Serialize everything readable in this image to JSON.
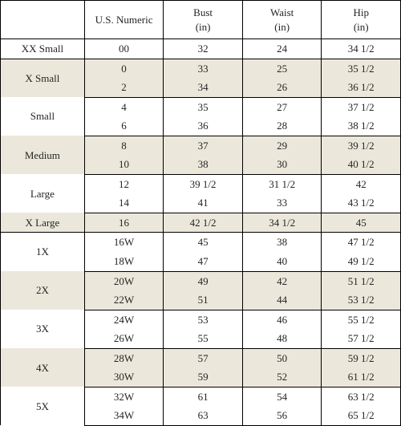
{
  "table": {
    "type": "table",
    "background_color": "#ffffff",
    "alt_row_color": "#ebe8db",
    "border_color": "#000000",
    "text_color": "#252525",
    "font_family": "serif",
    "font_size_pt": 10,
    "columns": [
      {
        "label_line1": "",
        "label_line2": ""
      },
      {
        "label_line1": "U.S. Numeric",
        "label_line2": ""
      },
      {
        "label_line1": "Bust",
        "label_line2": "(in)"
      },
      {
        "label_line1": "Waist",
        "label_line2": "(in)"
      },
      {
        "label_line1": "Hip",
        "label_line2": "(in)"
      }
    ],
    "groups": [
      {
        "size": "XX Small",
        "band": "a",
        "rows": [
          {
            "numeric": "00",
            "bust": "32",
            "waist": "24",
            "hip": "34 1/2"
          }
        ]
      },
      {
        "size": "X Small",
        "band": "b",
        "rows": [
          {
            "numeric": "0",
            "bust": "33",
            "waist": "25",
            "hip": "35 1/2"
          },
          {
            "numeric": "2",
            "bust": "34",
            "waist": "26",
            "hip": "36 1/2"
          }
        ]
      },
      {
        "size": "Small",
        "band": "a",
        "rows": [
          {
            "numeric": "4",
            "bust": "35",
            "waist": "27",
            "hip": "37 1/2"
          },
          {
            "numeric": "6",
            "bust": "36",
            "waist": "28",
            "hip": "38 1/2"
          }
        ]
      },
      {
        "size": "Medium",
        "band": "b",
        "rows": [
          {
            "numeric": "8",
            "bust": "37",
            "waist": "29",
            "hip": "39 1/2"
          },
          {
            "numeric": "10",
            "bust": "38",
            "waist": "30",
            "hip": "40 1/2"
          }
        ]
      },
      {
        "size": "Large",
        "band": "a",
        "rows": [
          {
            "numeric": "12",
            "bust": "39 1/2",
            "waist": "31 1/2",
            "hip": "42"
          },
          {
            "numeric": "14",
            "bust": "41",
            "waist": "33",
            "hip": "43 1/2"
          }
        ]
      },
      {
        "size": "X Large",
        "band": "b",
        "rows": [
          {
            "numeric": "16",
            "bust": "42 1/2",
            "waist": "34 1/2",
            "hip": "45"
          }
        ]
      },
      {
        "size": "1X",
        "band": "a",
        "rows": [
          {
            "numeric": "16W",
            "bust": "45",
            "waist": "38",
            "hip": "47 1/2"
          },
          {
            "numeric": "18W",
            "bust": "47",
            "waist": "40",
            "hip": "49 1/2"
          }
        ]
      },
      {
        "size": "2X",
        "band": "b",
        "rows": [
          {
            "numeric": "20W",
            "bust": "49",
            "waist": "42",
            "hip": "51 1/2"
          },
          {
            "numeric": "22W",
            "bust": "51",
            "waist": "44",
            "hip": "53 1/2"
          }
        ]
      },
      {
        "size": "3X",
        "band": "a",
        "rows": [
          {
            "numeric": "24W",
            "bust": "53",
            "waist": "46",
            "hip": "55 1/2"
          },
          {
            "numeric": "26W",
            "bust": "55",
            "waist": "48",
            "hip": "57 1/2"
          }
        ]
      },
      {
        "size": "4X",
        "band": "b",
        "rows": [
          {
            "numeric": "28W",
            "bust": "57",
            "waist": "50",
            "hip": "59 1/2"
          },
          {
            "numeric": "30W",
            "bust": "59",
            "waist": "52",
            "hip": "61 1/2"
          }
        ]
      },
      {
        "size": "5X",
        "band": "a",
        "rows": [
          {
            "numeric": "32W",
            "bust": "61",
            "waist": "54",
            "hip": "63 1/2"
          },
          {
            "numeric": "34W",
            "bust": "63",
            "waist": "56",
            "hip": "65 1/2"
          }
        ]
      }
    ]
  }
}
